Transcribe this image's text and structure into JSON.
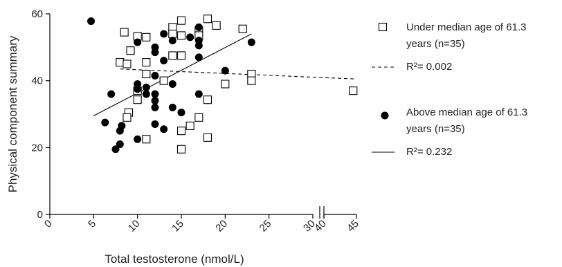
{
  "chart_data": {
    "type": "scatter",
    "xlabel": "Total testosterone (nmol/L)",
    "ylabel": "Physical component summary",
    "x_ticks_main": [
      "0",
      "5",
      "10",
      "15",
      "20",
      "25",
      "30"
    ],
    "x_ticks_break": [
      "40",
      "45"
    ],
    "y_ticks": [
      "0",
      "20",
      "40",
      "60"
    ],
    "xlim_main": [
      0,
      30
    ],
    "xlim_break": [
      40,
      45
    ],
    "ylim": [
      0,
      60
    ],
    "grid": false,
    "legend_position": "right",
    "series": [
      {
        "name": "Under median age of 61.3 years (n=35)",
        "marker": "open-square",
        "color": "#000000",
        "points": [
          [
            8.0,
            45.5
          ],
          [
            8.5,
            54.5
          ],
          [
            8.8,
            45.0
          ],
          [
            9.2,
            49.0
          ],
          [
            10.0,
            53.3
          ],
          [
            11.0,
            53.0
          ],
          [
            11.0,
            45.5
          ],
          [
            11.0,
            42.0
          ],
          [
            14.0,
            56.0
          ],
          [
            14.0,
            54.0
          ],
          [
            14.0,
            47.5
          ],
          [
            15.0,
            58.0
          ],
          [
            15.0,
            53.5
          ],
          [
            15.0,
            47.5
          ],
          [
            17.0,
            55.0
          ],
          [
            17.0,
            53.5
          ],
          [
            18.0,
            58.5
          ],
          [
            19.0,
            56.5
          ],
          [
            22.0,
            55.5
          ],
          [
            23.0,
            42.0
          ],
          [
            23.0,
            40.0
          ],
          [
            20.0,
            39.0
          ],
          [
            44.5,
            37.0
          ],
          [
            13.0,
            40.0
          ],
          [
            10.0,
            37.0
          ],
          [
            10.0,
            34.3
          ],
          [
            9.0,
            30.5
          ],
          [
            8.8,
            29.0
          ],
          [
            16.0,
            26.5
          ],
          [
            15.0,
            25.0
          ],
          [
            17.0,
            29.0
          ],
          [
            18.0,
            34.3
          ],
          [
            18.0,
            23.0
          ],
          [
            11.0,
            22.5
          ],
          [
            15.0,
            19.5
          ]
        ]
      },
      {
        "name": "Above median age of 61.3 years (n=35)",
        "marker": "filled-circle",
        "color": "#000000",
        "points": [
          [
            4.7,
            57.8
          ],
          [
            10.0,
            51.5
          ],
          [
            12.0,
            50.0
          ],
          [
            12.0,
            48.5
          ],
          [
            13.0,
            54.0
          ],
          [
            14.0,
            52.0
          ],
          [
            16.0,
            53.0
          ],
          [
            17.0,
            56.0
          ],
          [
            17.0,
            52.0
          ],
          [
            17.0,
            50.5
          ],
          [
            13.0,
            46.0
          ],
          [
            17.0,
            47.0
          ],
          [
            23.0,
            51.5
          ],
          [
            20.0,
            43.0
          ],
          [
            7.0,
            36.0
          ],
          [
            10.0,
            39.0
          ],
          [
            10.0,
            37.5
          ],
          [
            11.0,
            38.0
          ],
          [
            11.0,
            36.0
          ],
          [
            12.0,
            36.0
          ],
          [
            12.0,
            34.0
          ],
          [
            12.0,
            32.0
          ],
          [
            14.0,
            39.0
          ],
          [
            14.0,
            32.0
          ],
          [
            15.0,
            30.5
          ],
          [
            17.0,
            36.0
          ],
          [
            12.0,
            41.5
          ],
          [
            6.3,
            27.5
          ],
          [
            8.2,
            26.5
          ],
          [
            8.0,
            25.0
          ],
          [
            12.0,
            27.0
          ],
          [
            8.0,
            21.0
          ],
          [
            7.5,
            19.5
          ],
          [
            10.0,
            22.5
          ],
          [
            13.0,
            25.5
          ]
        ]
      }
    ],
    "fit_lines": [
      {
        "series": "Under median age of 61.3 years (n=35)",
        "label": "R²= 0.002",
        "style": "dashed",
        "from": [
          8.0,
          43.5
        ],
        "to": [
          45.0,
          40.5
        ]
      },
      {
        "series": "Above median age of 61.3 years (n=35)",
        "label": "R²= 0.232",
        "style": "solid",
        "from": [
          5.0,
          29.5
        ],
        "to": [
          23.0,
          54.0
        ]
      }
    ]
  },
  "legend": {
    "under_line1": "Under median age of 61.3",
    "under_line2": "years (n=35)",
    "under_r2": "R²= 0.002",
    "above_line1": "Above median age of 61.3",
    "above_line2": "years (n=35)",
    "above_r2": "R²= 0.232"
  }
}
